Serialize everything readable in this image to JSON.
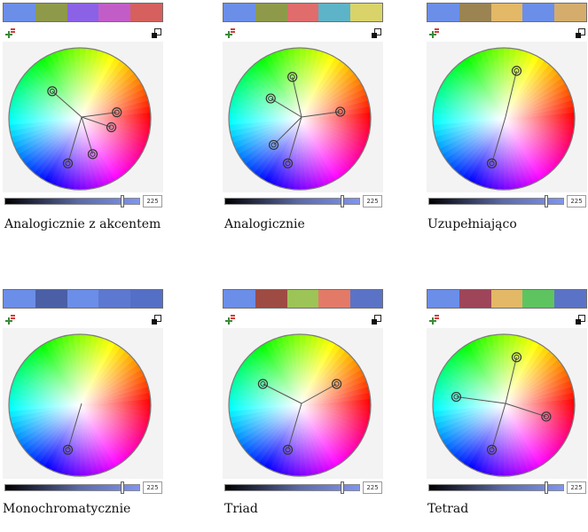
{
  "panels": [
    {
      "caption": "Analogicznie z akcentem",
      "swatches": [
        "#6b8ee8",
        "#8e9a4a",
        "#8b62e6",
        "#c25dc8",
        "#d5605e"
      ],
      "slider_value": "225",
      "markers": [
        {
          "angle": 135,
          "r": 0.55
        },
        {
          "angle": 10,
          "r": 0.53
        },
        {
          "angle": 345,
          "r": 0.46,
          "single": true
        },
        {
          "angle": 290,
          "r": 0.53,
          "single": true
        },
        {
          "angle": 255,
          "r": 0.65
        }
      ]
    },
    {
      "caption": "Analogicznie",
      "swatches": [
        "#6b8ee8",
        "#8e9a4a",
        "#e06c6c",
        "#5db4c8",
        "#d9d36a"
      ],
      "slider_value": "225",
      "markers": [
        {
          "angle": 145,
          "r": 0.5
        },
        {
          "angle": 100,
          "r": 0.6
        },
        {
          "angle": 10,
          "r": 0.58
        },
        {
          "angle": 225,
          "r": 0.52
        },
        {
          "angle": 255,
          "r": 0.65
        }
      ]
    },
    {
      "caption": "Uzupełniająco",
      "swatches": [
        "#6b8ee8",
        "#9b8451",
        "#e3b866",
        "#6b8ee8",
        "#d4ad6d"
      ],
      "slider_value": "225",
      "markers": [
        {
          "angle": 75,
          "r": 0.7
        },
        {
          "angle": 255,
          "r": 0.65
        }
      ]
    },
    {
      "caption": "Monochromatycznie",
      "swatches": [
        "#6b8ee8",
        "#4a5fa6",
        "#6b8ee8",
        "#5d78d0",
        "#5470c6"
      ],
      "slider_value": "225",
      "markers": [
        {
          "angle": 255,
          "r": 0.65
        }
      ]
    },
    {
      "caption": "Triad",
      "swatches": [
        "#6b8ee8",
        "#9e4b43",
        "#9dc456",
        "#e37a68",
        "#5b73c6"
      ],
      "slider_value": "225",
      "markers": [
        {
          "angle": 150,
          "r": 0.6
        },
        {
          "angle": 30,
          "r": 0.6
        },
        {
          "angle": 255,
          "r": 0.65
        }
      ]
    },
    {
      "caption": "Tetrad",
      "swatches": [
        "#6b8ee8",
        "#9e4559",
        "#e3b866",
        "#5ec460",
        "#5b73c6"
      ],
      "slider_value": "225",
      "markers": [
        {
          "angle": 75,
          "r": 0.7
        },
        {
          "angle": 170,
          "r": 0.68
        },
        {
          "angle": 345,
          "r": 0.62
        },
        {
          "angle": 255,
          "r": 0.65
        }
      ]
    }
  ]
}
